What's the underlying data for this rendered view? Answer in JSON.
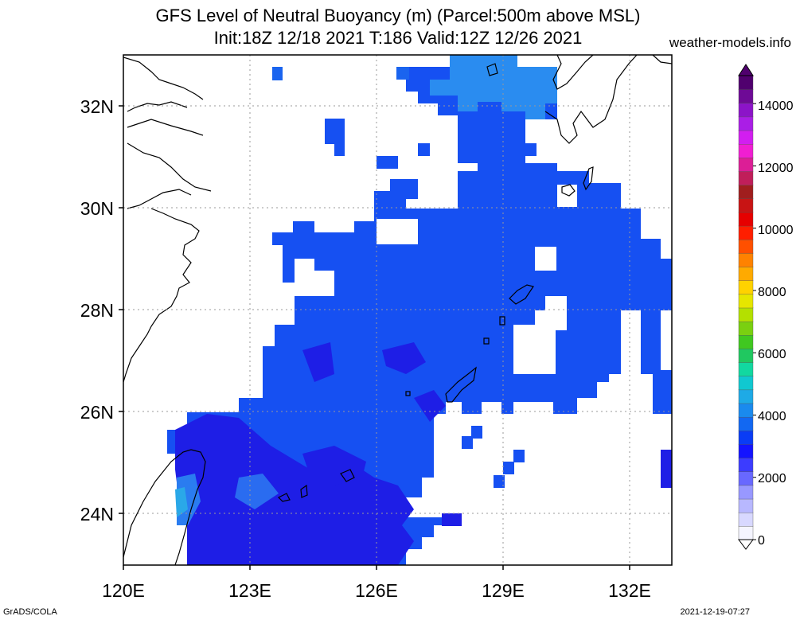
{
  "header": {
    "title_line1": "GFS Level of Neutral Buoyancy (m) (Parcel:500m above MSL)",
    "title_line2": "Init:18Z 12/18 2021 T:186 Valid:12Z 12/26 2021",
    "site": "weather-models.info"
  },
  "footer": {
    "left": "GrADS/COLA",
    "right": "2021-12-19-07:27"
  },
  "map": {
    "lon_range": [
      120,
      133
    ],
    "lat_range": [
      23,
      33
    ],
    "lon_ticks": [
      "120E",
      "123E",
      "126E",
      "129E",
      "132E"
    ],
    "lat_ticks": [
      "24N",
      "26N",
      "28N",
      "30N",
      "32N"
    ],
    "grid": true
  },
  "colorbar": {
    "labels": [
      "0",
      "2000",
      "4000",
      "6000",
      "8000",
      "10000",
      "12000",
      "14000"
    ],
    "colors": [
      "#f5f5ff",
      "#d8d8ff",
      "#b8b8ff",
      "#9898ff",
      "#6868ff",
      "#3c3cff",
      "#1414ff",
      "#0a3cf5",
      "#1268f2",
      "#1a8aee",
      "#1eaae6",
      "#10c8d0",
      "#12d8a0",
      "#20c860",
      "#40c820",
      "#7ad010",
      "#b4e000",
      "#e6e600",
      "#ffd200",
      "#ffaa00",
      "#ff8200",
      "#ff5000",
      "#ff1e00",
      "#e60000",
      "#c81414",
      "#a01e1e",
      "#c01e5a",
      "#dc1e96",
      "#f01ed2",
      "#d21ef0",
      "#aa1ee6",
      "#8c14c8",
      "#6e0a96",
      "#50006e"
    ],
    "colors_note_values": "shading from 0 to 15000 m"
  },
  "legend_fill": {
    "main_blue": "#1450f0",
    "deep_blue": "#1e1ee6",
    "light_blue": "#1e78f0",
    "lighter_blue": "#2a96f0"
  }
}
